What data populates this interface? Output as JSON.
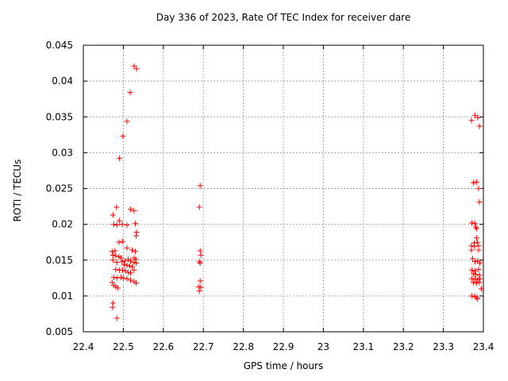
{
  "chart_data": {
    "type": "scatter",
    "title": "Day 336 of 2023, Rate Of TEC Index for receiver dare",
    "xlabel": "GPS time / hours",
    "ylabel": "ROTI / TECUs",
    "xlim": [
      22.4,
      23.4
    ],
    "ylim": [
      0.005,
      0.045
    ],
    "x_ticks": [
      22.4,
      22.5,
      22.6,
      22.7,
      22.8,
      22.9,
      23.0,
      23.1,
      23.2,
      23.3,
      23.4
    ],
    "x_tick_labels": [
      "22.4",
      "22.5",
      "22.6",
      "22.7",
      "22.8",
      "22.9",
      "23",
      "23.1",
      "23.2",
      "23.3",
      "23.4"
    ],
    "y_ticks": [
      0.005,
      0.01,
      0.015,
      0.02,
      0.025,
      0.03,
      0.035,
      0.04,
      0.045
    ],
    "y_tick_labels": [
      "0.005",
      "0.01",
      "0.015",
      "0.02",
      "0.025",
      "0.03",
      "0.035",
      "0.04",
      "0.045"
    ],
    "grid": true,
    "legend": "none",
    "background_color": "#ffffff",
    "axis_color": "#000000",
    "grid_color": "#a8a8a8",
    "marker": {
      "shape": "plus-cross",
      "color": "#ff0000",
      "size": 7
    },
    "series": [
      {
        "name": "ROTI",
        "points": [
          [
            22.527,
            0.0421
          ],
          [
            22.533,
            0.0417
          ],
          [
            22.517,
            0.0384
          ],
          [
            22.509,
            0.0344
          ],
          [
            22.499,
            0.0323
          ],
          [
            22.49,
            0.0292
          ],
          [
            22.483,
            0.0224
          ],
          [
            22.474,
            0.0213
          ],
          [
            22.518,
            0.0221
          ],
          [
            22.527,
            0.0219
          ],
          [
            22.49,
            0.0205
          ],
          [
            22.476,
            0.02
          ],
          [
            22.484,
            0.0199
          ],
          [
            22.497,
            0.02
          ],
          [
            22.509,
            0.0199
          ],
          [
            22.53,
            0.0201
          ],
          [
            22.533,
            0.0189
          ],
          [
            22.532,
            0.0184
          ],
          [
            22.489,
            0.0175
          ],
          [
            22.498,
            0.0176
          ],
          [
            22.509,
            0.0167
          ],
          [
            22.472,
            0.0162
          ],
          [
            22.479,
            0.0163
          ],
          [
            22.522,
            0.0164
          ],
          [
            22.53,
            0.0162
          ],
          [
            22.474,
            0.0157
          ],
          [
            22.481,
            0.0156
          ],
          [
            22.489,
            0.0155
          ],
          [
            22.494,
            0.0153
          ],
          [
            22.474,
            0.015
          ],
          [
            22.484,
            0.0147
          ],
          [
            22.497,
            0.0148
          ],
          [
            22.504,
            0.0149
          ],
          [
            22.512,
            0.0151
          ],
          [
            22.518,
            0.0149
          ],
          [
            22.527,
            0.0153
          ],
          [
            22.531,
            0.0151
          ],
          [
            22.527,
            0.0147
          ],
          [
            22.532,
            0.0146
          ],
          [
            22.502,
            0.0144
          ],
          [
            22.509,
            0.0143
          ],
          [
            22.516,
            0.0142
          ],
          [
            22.522,
            0.0141
          ],
          [
            22.481,
            0.0137
          ],
          [
            22.49,
            0.0136
          ],
          [
            22.498,
            0.0136
          ],
          [
            22.505,
            0.0135
          ],
          [
            22.512,
            0.0133
          ],
          [
            22.518,
            0.0132
          ],
          [
            22.527,
            0.0136
          ],
          [
            22.476,
            0.0126
          ],
          [
            22.484,
            0.0125
          ],
          [
            22.494,
            0.0126
          ],
          [
            22.5,
            0.0125
          ],
          [
            22.509,
            0.0124
          ],
          [
            22.518,
            0.0122
          ],
          [
            22.527,
            0.012
          ],
          [
            22.472,
            0.0119
          ],
          [
            22.476,
            0.0115
          ],
          [
            22.481,
            0.0113
          ],
          [
            22.486,
            0.0111
          ],
          [
            22.532,
            0.0118
          ],
          [
            22.474,
            0.009
          ],
          [
            22.473,
            0.0084
          ],
          [
            22.484,
            0.0069
          ],
          [
            22.692,
            0.0254
          ],
          [
            22.69,
            0.0224
          ],
          [
            22.692,
            0.0163
          ],
          [
            22.694,
            0.0157
          ],
          [
            22.69,
            0.0148
          ],
          [
            22.692,
            0.0146
          ],
          [
            22.692,
            0.0121
          ],
          [
            22.688,
            0.0113
          ],
          [
            22.694,
            0.0112
          ],
          [
            22.69,
            0.0107
          ],
          [
            23.379,
            0.0352
          ],
          [
            23.386,
            0.0349
          ],
          [
            23.37,
            0.0345
          ],
          [
            23.39,
            0.0337
          ],
          [
            23.375,
            0.0258
          ],
          [
            23.383,
            0.0259
          ],
          [
            23.388,
            0.025
          ],
          [
            23.39,
            0.0231
          ],
          [
            23.371,
            0.0202
          ],
          [
            23.379,
            0.0201
          ],
          [
            23.381,
            0.0196
          ],
          [
            23.383,
            0.0194
          ],
          [
            23.383,
            0.0181
          ],
          [
            23.377,
            0.0174
          ],
          [
            23.385,
            0.0175
          ],
          [
            23.37,
            0.017
          ],
          [
            23.378,
            0.0169
          ],
          [
            23.388,
            0.017
          ],
          [
            23.37,
            0.0164
          ],
          [
            23.388,
            0.0164
          ],
          [
            23.373,
            0.0152
          ],
          [
            23.379,
            0.0148
          ],
          [
            23.386,
            0.0149
          ],
          [
            23.391,
            0.0146
          ],
          [
            23.371,
            0.0136
          ],
          [
            23.379,
            0.0135
          ],
          [
            23.388,
            0.0137
          ],
          [
            23.375,
            0.0131
          ],
          [
            23.381,
            0.013
          ],
          [
            23.39,
            0.0129
          ],
          [
            23.371,
            0.0124
          ],
          [
            23.379,
            0.0124
          ],
          [
            23.386,
            0.0123
          ],
          [
            23.391,
            0.0124
          ],
          [
            23.375,
            0.0119
          ],
          [
            23.383,
            0.0118
          ],
          [
            23.39,
            0.0119
          ],
          [
            23.395,
            0.011
          ],
          [
            23.371,
            0.01
          ],
          [
            23.379,
            0.0099
          ],
          [
            23.384,
            0.0098
          ],
          [
            23.385,
            0.0096
          ]
        ]
      }
    ]
  }
}
